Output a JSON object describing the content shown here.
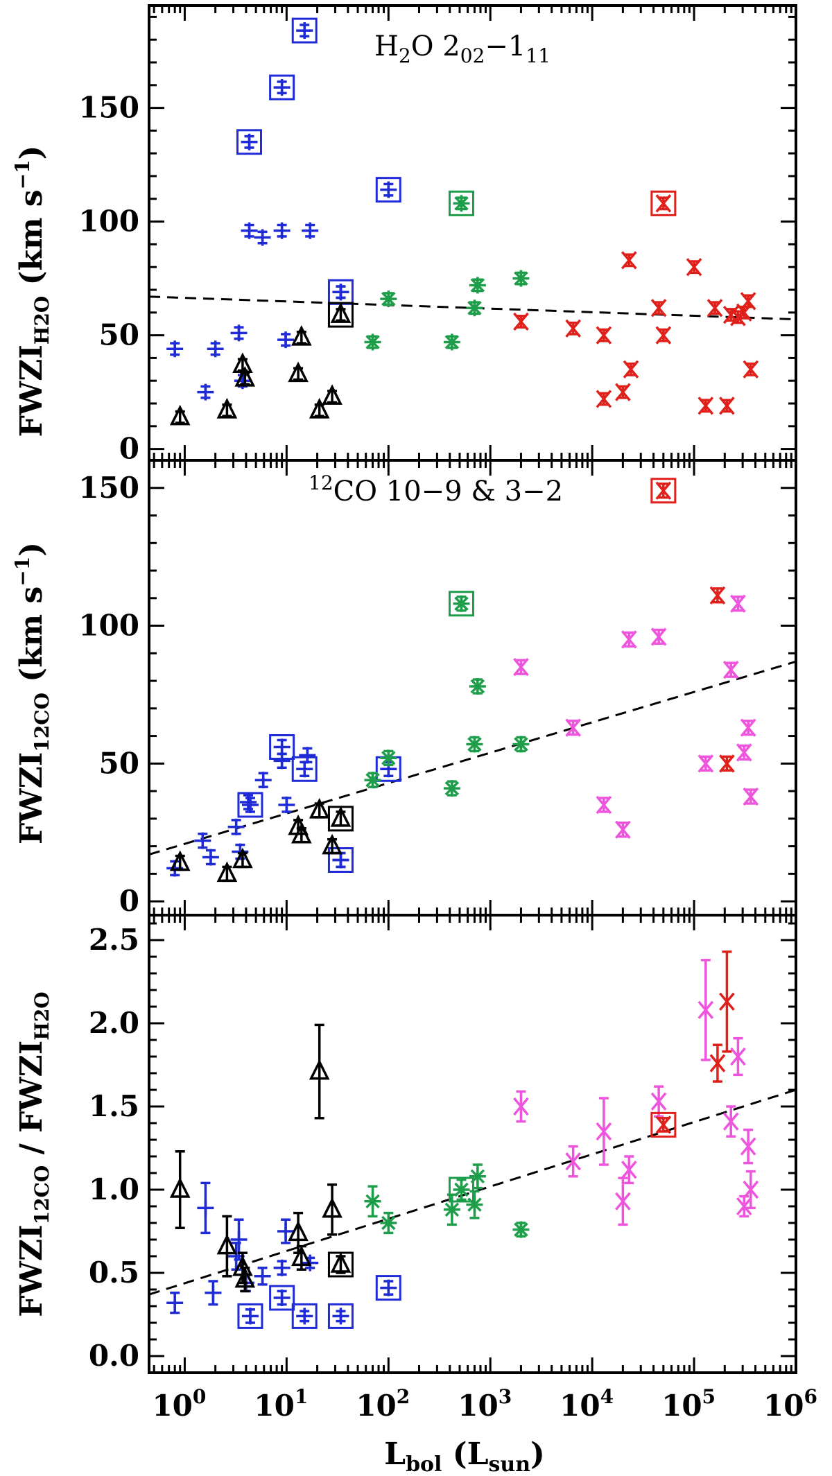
{
  "colors": {
    "class0": "#1e2bd6",
    "class1": "#000000",
    "ims": "#1e9e4a",
    "hmc": "#e0201a",
    "uchii": "#ee55dd"
  },
  "x_axis": {
    "title_main": "L",
    "title_sub": "bol",
    "title_open": " (L",
    "title_unit_sub": "sun",
    "title_close": ")",
    "ticks": [
      {
        "base": "10",
        "exp": "0",
        "value": 0
      },
      {
        "base": "10",
        "exp": "1",
        "value": 1
      },
      {
        "base": "10",
        "exp": "2",
        "value": 2
      },
      {
        "base": "10",
        "exp": "3",
        "value": 3
      },
      {
        "base": "10",
        "exp": "4",
        "value": 4
      },
      {
        "base": "10",
        "exp": "5",
        "value": 5
      },
      {
        "base": "10",
        "exp": "6",
        "value": 6
      }
    ],
    "log_range": [
      -0.35,
      6.0
    ]
  },
  "chart_data": [
    {
      "type": "scatter",
      "title": "H2O 2_02-1_11",
      "title_parts": {
        "a": "H",
        "a_sub": "2",
        "b": "O 2",
        "b_sub": "02",
        "c": "−1",
        "c_sub": "11"
      },
      "xlabel": "Lbol (Lsun)",
      "ylabel": "FWZI_H2O (km s^-1)",
      "ylabel_parts": {
        "main": "FWZI",
        "sub": "H2O",
        "unit": " (km s",
        "exp": "−1",
        "close": ")"
      },
      "ylim": [
        -5,
        195
      ],
      "yticks": [
        "0",
        "50",
        "100",
        "150"
      ],
      "fit": {
        "x1": -0.35,
        "y1": 67,
        "x2": 6.0,
        "y2": 57
      },
      "series": [
        {
          "name": "class0",
          "color": "class0",
          "marker": "plus",
          "points": [
            {
              "x": 0.8,
              "y": 44
            },
            {
              "x": 1.6,
              "y": 25
            },
            {
              "x": 2.0,
              "y": 44
            },
            {
              "x": 3.4,
              "y": 51
            },
            {
              "x": 3.7,
              "y": 30
            },
            {
              "x": 4.3,
              "y": 96
            },
            {
              "x": 5.8,
              "y": 93
            },
            {
              "x": 9.0,
              "y": 96
            },
            {
              "x": 9.8,
              "y": 48
            },
            {
              "x": 17.0,
              "y": 96
            },
            {
              "x": 34.0,
              "y": 69
            }
          ]
        },
        {
          "name": "class0-boxed",
          "color": "class0",
          "marker": "plus-box",
          "points": [
            {
              "x": 4.3,
              "y": 135
            },
            {
              "x": 9.0,
              "y": 159
            },
            {
              "x": 15.0,
              "y": 184
            },
            {
              "x": 34.0,
              "y": 69
            },
            {
              "x": 100.0,
              "y": 114
            }
          ]
        },
        {
          "name": "class1",
          "color": "class1",
          "marker": "triangle",
          "points": [
            {
              "x": 0.9,
              "y": 14
            },
            {
              "x": 2.6,
              "y": 17
            },
            {
              "x": 3.7,
              "y": 37
            },
            {
              "x": 3.9,
              "y": 31
            },
            {
              "x": 13.0,
              "y": 33
            },
            {
              "x": 14.0,
              "y": 49
            },
            {
              "x": 21.0,
              "y": 17
            },
            {
              "x": 28.0,
              "y": 23
            }
          ]
        },
        {
          "name": "class1-boxed",
          "color": "class1",
          "marker": "triangle-box",
          "points": [
            {
              "x": 34.0,
              "y": 59
            }
          ]
        },
        {
          "name": "ims",
          "color": "ims",
          "marker": "asterisk",
          "points": [
            {
              "x": 70.0,
              "y": 47
            },
            {
              "x": 100.0,
              "y": 66
            },
            {
              "x": 420.0,
              "y": 47
            },
            {
              "x": 700.0,
              "y": 62
            },
            {
              "x": 750.0,
              "y": 72
            },
            {
              "x": 2000.0,
              "y": 75
            }
          ]
        },
        {
          "name": "ims-boxed",
          "color": "ims",
          "marker": "asterisk-box",
          "points": [
            {
              "x": 520.0,
              "y": 108
            }
          ]
        },
        {
          "name": "hmc",
          "color": "hmc",
          "marker": "xbar",
          "points": [
            {
              "x": 2000.0,
              "y": 56
            },
            {
              "x": 6500.0,
              "y": 53
            },
            {
              "x": 13000.0,
              "y": 50
            },
            {
              "x": 13000.0,
              "y": 22
            },
            {
              "x": 20000.0,
              "y": 25
            },
            {
              "x": 23000.0,
              "y": 83
            },
            {
              "x": 24000.0,
              "y": 35
            },
            {
              "x": 45000.0,
              "y": 62
            },
            {
              "x": 50000.0,
              "y": 50
            },
            {
              "x": 100000.0,
              "y": 80
            },
            {
              "x": 130000.0,
              "y": 19
            },
            {
              "x": 160000.0,
              "y": 62
            },
            {
              "x": 210000.0,
              "y": 19
            },
            {
              "x": 230000.0,
              "y": 59
            },
            {
              "x": 270000.0,
              "y": 58
            },
            {
              "x": 310000.0,
              "y": 60
            },
            {
              "x": 340000.0,
              "y": 65
            },
            {
              "x": 360000.0,
              "y": 35
            }
          ]
        },
        {
          "name": "hmc-boxed",
          "color": "hmc",
          "marker": "xbar-box",
          "points": [
            {
              "x": 50000.0,
              "y": 108
            }
          ]
        }
      ]
    },
    {
      "type": "scatter",
      "title": "12CO 10-9 & 3-2",
      "title_parts": {
        "sup": "12",
        "text": "CO 10−9 & 3−2"
      },
      "xlabel": "Lbol (Lsun)",
      "ylabel": "FWZI_12CO (km s^-1)",
      "ylabel_parts": {
        "main": "FWZI",
        "sub": "12CO",
        "unit": " (km s",
        "exp": "−1",
        "close": ")"
      },
      "ylim": [
        -5,
        160
      ],
      "yticks": [
        "0",
        "50",
        "100",
        "150"
      ],
      "fit": {
        "x1": -0.35,
        "y1": 17,
        "x2": 6.0,
        "y2": 87
      },
      "series": [
        {
          "name": "class0",
          "color": "class0",
          "marker": "plus",
          "points": [
            {
              "x": 0.8,
              "y": 12
            },
            {
              "x": 1.5,
              "y": 22
            },
            {
              "x": 1.8,
              "y": 16
            },
            {
              "x": 3.2,
              "y": 27
            },
            {
              "x": 3.5,
              "y": 18
            },
            {
              "x": 4.2,
              "y": 36
            },
            {
              "x": 5.9,
              "y": 44
            },
            {
              "x": 9.0,
              "y": 51
            },
            {
              "x": 10.0,
              "y": 35
            },
            {
              "x": 16.0,
              "y": 53
            },
            {
              "x": 34.0,
              "y": 15
            }
          ]
        },
        {
          "name": "class0-boxed",
          "color": "class0",
          "marker": "plus-box",
          "points": [
            {
              "x": 4.4,
              "y": 35
            },
            {
              "x": 9.0,
              "y": 56
            },
            {
              "x": 15.0,
              "y": 48
            },
            {
              "x": 34.0,
              "y": 15
            },
            {
              "x": 100.0,
              "y": 48
            }
          ]
        },
        {
          "name": "class1",
          "color": "class1",
          "marker": "triangle",
          "points": [
            {
              "x": 0.9,
              "y": 14
            },
            {
              "x": 2.6,
              "y": 10
            },
            {
              "x": 3.7,
              "y": 15
            },
            {
              "x": 13.0,
              "y": 27
            },
            {
              "x": 14.0,
              "y": 24
            },
            {
              "x": 21.0,
              "y": 33
            },
            {
              "x": 28.0,
              "y": 20
            }
          ]
        },
        {
          "name": "class1-boxed",
          "color": "class1",
          "marker": "triangle-box",
          "points": [
            {
              "x": 34.0,
              "y": 30
            }
          ]
        },
        {
          "name": "ims",
          "color": "ims",
          "marker": "asterisk",
          "points": [
            {
              "x": 70.0,
              "y": 44
            },
            {
              "x": 100.0,
              "y": 52
            },
            {
              "x": 420.0,
              "y": 41
            },
            {
              "x": 700.0,
              "y": 57
            },
            {
              "x": 750.0,
              "y": 78
            },
            {
              "x": 2000.0,
              "y": 57
            }
          ]
        },
        {
          "name": "ims-boxed",
          "color": "ims",
          "marker": "asterisk-box",
          "points": [
            {
              "x": 520.0,
              "y": 108
            }
          ]
        },
        {
          "name": "uchii",
          "color": "uchii",
          "marker": "xbar",
          "points": [
            {
              "x": 2000.0,
              "y": 85
            },
            {
              "x": 6500.0,
              "y": 63
            },
            {
              "x": 13000.0,
              "y": 35
            },
            {
              "x": 20000.0,
              "y": 26
            },
            {
              "x": 23000.0,
              "y": 95
            },
            {
              "x": 45000.0,
              "y": 96
            },
            {
              "x": 130000.0,
              "y": 50
            },
            {
              "x": 230000.0,
              "y": 84
            },
            {
              "x": 270000.0,
              "y": 108
            },
            {
              "x": 310000.0,
              "y": 54
            },
            {
              "x": 340000.0,
              "y": 63
            },
            {
              "x": 360000.0,
              "y": 38
            }
          ]
        },
        {
          "name": "hmc",
          "color": "hmc",
          "marker": "xbar",
          "points": [
            {
              "x": 170000.0,
              "y": 111
            },
            {
              "x": 210000.0,
              "y": 50
            }
          ]
        },
        {
          "name": "hmc-boxed",
          "color": "hmc",
          "marker": "xbar-box",
          "points": [
            {
              "x": 50000.0,
              "y": 149
            }
          ]
        }
      ]
    },
    {
      "type": "scatter",
      "title": "",
      "xlabel": "Lbol (Lsun)",
      "ylabel": "FWZI_12CO / FWZI_H2O",
      "ylabel_parts": {
        "a": "FWZI",
        "a_sub": "12CO",
        "mid": " / FWZI",
        "b_sub": "H2O"
      },
      "ylim": [
        -0.1,
        2.65
      ],
      "yticks": [
        "0.0",
        "0.5",
        "1.0",
        "1.5",
        "2.0",
        "2.5"
      ],
      "fit": {
        "x1": -0.35,
        "y1": 0.37,
        "x2": 6.0,
        "y2": 1.6
      },
      "series": [
        {
          "name": "class0",
          "color": "class0",
          "marker": "plus",
          "points": [
            {
              "x": 0.8,
              "y": 0.32,
              "err": 0.06
            },
            {
              "x": 1.6,
              "y": 0.89,
              "err": 0.15
            },
            {
              "x": 1.9,
              "y": 0.38,
              "err": 0.07
            },
            {
              "x": 3.2,
              "y": 0.6,
              "err": 0.08
            },
            {
              "x": 3.4,
              "y": 0.7,
              "err": 0.12
            },
            {
              "x": 4.0,
              "y": 0.44,
              "err": 0.05
            },
            {
              "x": 5.8,
              "y": 0.48,
              "err": 0.05
            },
            {
              "x": 9.0,
              "y": 0.53,
              "err": 0.04
            },
            {
              "x": 9.8,
              "y": 0.75,
              "err": 0.07
            },
            {
              "x": 17.0,
              "y": 0.56,
              "err": 0.03
            }
          ]
        },
        {
          "name": "class0-boxed",
          "color": "class0",
          "marker": "plus-box",
          "points": [
            {
              "x": 4.4,
              "y": 0.24,
              "err": 0.04
            },
            {
              "x": 9.0,
              "y": 0.35,
              "err": 0.04
            },
            {
              "x": 15.0,
              "y": 0.24,
              "err": 0.03
            },
            {
              "x": 34.0,
              "y": 0.24,
              "err": 0.03
            },
            {
              "x": 100.0,
              "y": 0.41,
              "err": 0.04
            }
          ]
        },
        {
          "name": "class1",
          "color": "class1",
          "marker": "triangle",
          "points": [
            {
              "x": 0.9,
              "y": 1.0,
              "err": 0.23
            },
            {
              "x": 2.6,
              "y": 0.66,
              "err": 0.18
            },
            {
              "x": 3.7,
              "y": 0.53,
              "err": 0.09
            },
            {
              "x": 3.9,
              "y": 0.46,
              "err": 0.07
            },
            {
              "x": 13.0,
              "y": 0.74,
              "err": 0.12
            },
            {
              "x": 14.0,
              "y": 0.59,
              "err": 0.07
            },
            {
              "x": 21.0,
              "y": 1.71,
              "err": 0.28
            },
            {
              "x": 28.0,
              "y": 0.88,
              "err": 0.15
            }
          ]
        },
        {
          "name": "class1-boxed",
          "color": "class1",
          "marker": "triangle-box",
          "points": [
            {
              "x": 34.0,
              "y": 0.55,
              "err": 0.05
            }
          ]
        },
        {
          "name": "ims",
          "color": "ims",
          "marker": "asterisk",
          "points": [
            {
              "x": 70.0,
              "y": 0.93,
              "err": 0.09
            },
            {
              "x": 100.0,
              "y": 0.8,
              "err": 0.06
            },
            {
              "x": 420.0,
              "y": 0.88,
              "err": 0.09
            },
            {
              "x": 700.0,
              "y": 0.91,
              "err": 0.08
            },
            {
              "x": 750.0,
              "y": 1.08,
              "err": 0.07
            },
            {
              "x": 2000.0,
              "y": 0.76,
              "err": 0.04
            }
          ]
        },
        {
          "name": "ims-boxed",
          "color": "ims",
          "marker": "asterisk-box",
          "points": [
            {
              "x": 520.0,
              "y": 1.0,
              "err": 0.06
            }
          ]
        },
        {
          "name": "uchii",
          "color": "uchii",
          "marker": "xbar",
          "points": [
            {
              "x": 2000.0,
              "y": 1.5,
              "err": 0.09
            },
            {
              "x": 6500.0,
              "y": 1.17,
              "err": 0.09
            },
            {
              "x": 13000.0,
              "y": 1.35,
              "err": 0.2
            },
            {
              "x": 20000.0,
              "y": 0.93,
              "err": 0.14
            },
            {
              "x": 23000.0,
              "y": 1.12,
              "err": 0.08
            },
            {
              "x": 45000.0,
              "y": 1.53,
              "err": 0.09
            },
            {
              "x": 130000.0,
              "y": 2.08,
              "err": 0.3
            },
            {
              "x": 230000.0,
              "y": 1.41,
              "err": 0.09
            },
            {
              "x": 270000.0,
              "y": 1.8,
              "err": 0.11
            },
            {
              "x": 310000.0,
              "y": 0.9,
              "err": 0.06
            },
            {
              "x": 340000.0,
              "y": 1.26,
              "err": 0.1
            },
            {
              "x": 360000.0,
              "y": 1.0,
              "err": 0.11
            }
          ]
        },
        {
          "name": "hmc",
          "color": "hmc",
          "marker": "xbar",
          "points": [
            {
              "x": 170000.0,
              "y": 1.76,
              "err": 0.11
            },
            {
              "x": 210000.0,
              "y": 2.13,
              "err": 0.3
            }
          ]
        },
        {
          "name": "hmc-boxed",
          "color": "hmc",
          "marker": "xbar-box",
          "points": [
            {
              "x": 50000.0,
              "y": 1.39,
              "err": 0.04
            }
          ]
        }
      ]
    }
  ]
}
